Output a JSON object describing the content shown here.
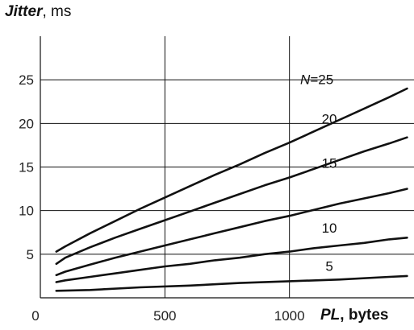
{
  "chart_data": {
    "type": "line",
    "title": "",
    "ylabel": {
      "name": "Jitter",
      "unit": ", ms"
    },
    "xlabel": {
      "name": "PL",
      "unit": ", bytes"
    },
    "xlim": [
      0,
      1500
    ],
    "ylim": [
      0,
      30
    ],
    "x_ticks": [
      0,
      500,
      1000
    ],
    "x_tick_labels": [
      "0",
      "500",
      "1000"
    ],
    "y_ticks": [
      5,
      10,
      15,
      20,
      25
    ],
    "y_tick_labels": [
      "5",
      "10",
      "15",
      "20",
      "25"
    ],
    "vertical_grid_at": [
      500,
      1000
    ],
    "horizontal_grid_at": [
      5,
      10,
      15,
      20,
      25
    ],
    "grid": true,
    "legend": "none (curves labelled inline)",
    "series": [
      {
        "name": "N=25",
        "label": "N=25",
        "label_prefix": "N",
        "label_value": "=25",
        "label_x": 1110,
        "label_y": 24.5,
        "x": [
          64,
          100,
          200,
          300,
          400,
          500,
          600,
          700,
          800,
          900,
          1000,
          1100,
          1200,
          1300,
          1400,
          1472
        ],
        "y": [
          5.3,
          5.9,
          7.4,
          8.8,
          10.2,
          11.5,
          12.8,
          14.1,
          15.3,
          16.6,
          17.8,
          19.1,
          20.4,
          21.7,
          23.0,
          24.0
        ]
      },
      {
        "name": "20",
        "label": "20",
        "label_x": 1160,
        "label_y": 20.0,
        "x": [
          64,
          100,
          200,
          300,
          400,
          500,
          600,
          700,
          800,
          900,
          1000,
          1100,
          1200,
          1300,
          1400,
          1472
        ],
        "y": [
          3.9,
          4.6,
          5.8,
          6.9,
          7.9,
          8.9,
          9.9,
          10.9,
          11.9,
          12.9,
          13.8,
          14.8,
          15.8,
          16.8,
          17.7,
          18.4
        ]
      },
      {
        "name": "15",
        "label": "15",
        "label_x": 1160,
        "label_y": 14.9,
        "x": [
          64,
          100,
          200,
          300,
          400,
          500,
          600,
          700,
          800,
          900,
          1000,
          1100,
          1200,
          1300,
          1400,
          1472
        ],
        "y": [
          2.6,
          3.0,
          3.8,
          4.6,
          5.3,
          6.0,
          6.7,
          7.4,
          8.1,
          8.8,
          9.4,
          10.1,
          10.8,
          11.4,
          12.0,
          12.5
        ]
      },
      {
        "name": "10",
        "label": "10",
        "label_x": 1160,
        "label_y": 7.5,
        "x": [
          64,
          100,
          200,
          300,
          400,
          500,
          600,
          700,
          800,
          900,
          1000,
          1100,
          1200,
          1300,
          1400,
          1472
        ],
        "y": [
          1.8,
          2.0,
          2.4,
          2.8,
          3.2,
          3.6,
          3.9,
          4.3,
          4.6,
          5.0,
          5.3,
          5.7,
          6.0,
          6.3,
          6.7,
          6.9
        ]
      },
      {
        "name": "5",
        "label": "5",
        "label_x": 1160,
        "label_y": 3.1,
        "x": [
          64,
          200,
          400,
          600,
          800,
          1000,
          1200,
          1400,
          1472
        ],
        "y": [
          0.8,
          0.9,
          1.2,
          1.4,
          1.7,
          1.9,
          2.1,
          2.4,
          2.5
        ]
      }
    ],
    "colors": {
      "line": "#111111",
      "grid": "#111111",
      "text": "#222222"
    }
  }
}
